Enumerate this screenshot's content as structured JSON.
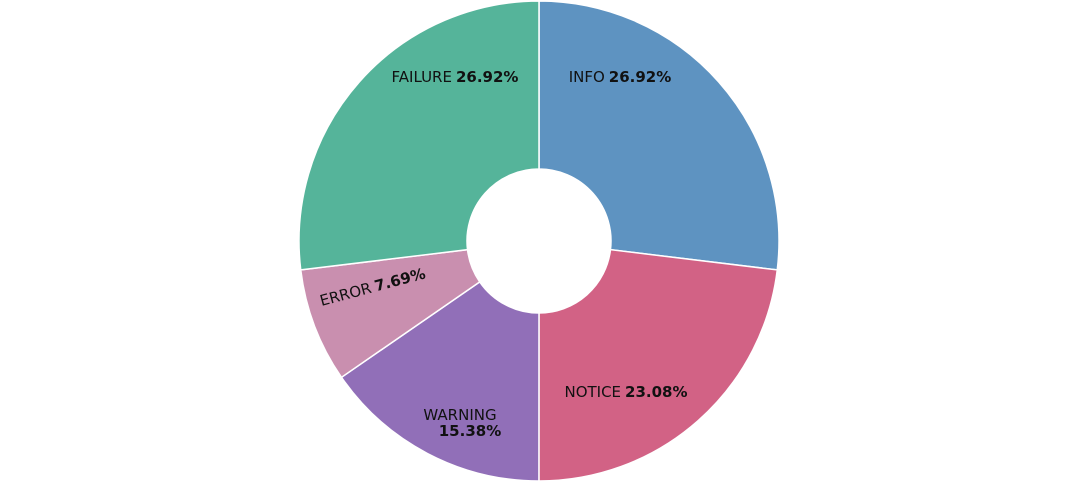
{
  "chart_data": {
    "type": "pie",
    "donut": true,
    "categories": [
      "INFO",
      "NOTICE",
      "WARNING",
      "ERROR",
      "FAILURE"
    ],
    "values": [
      26.92,
      23.08,
      15.38,
      7.69,
      26.92
    ],
    "percent_labels": [
      "26.92%",
      "23.08%",
      "15.38%",
      "7.69%",
      "26.92%"
    ],
    "colors": [
      "#5e93c1",
      "#d26285",
      "#916fb8",
      "#c98faf",
      "#55b49a"
    ],
    "start": "12 o'clock",
    "direction": "clockwise",
    "legend": "none"
  }
}
